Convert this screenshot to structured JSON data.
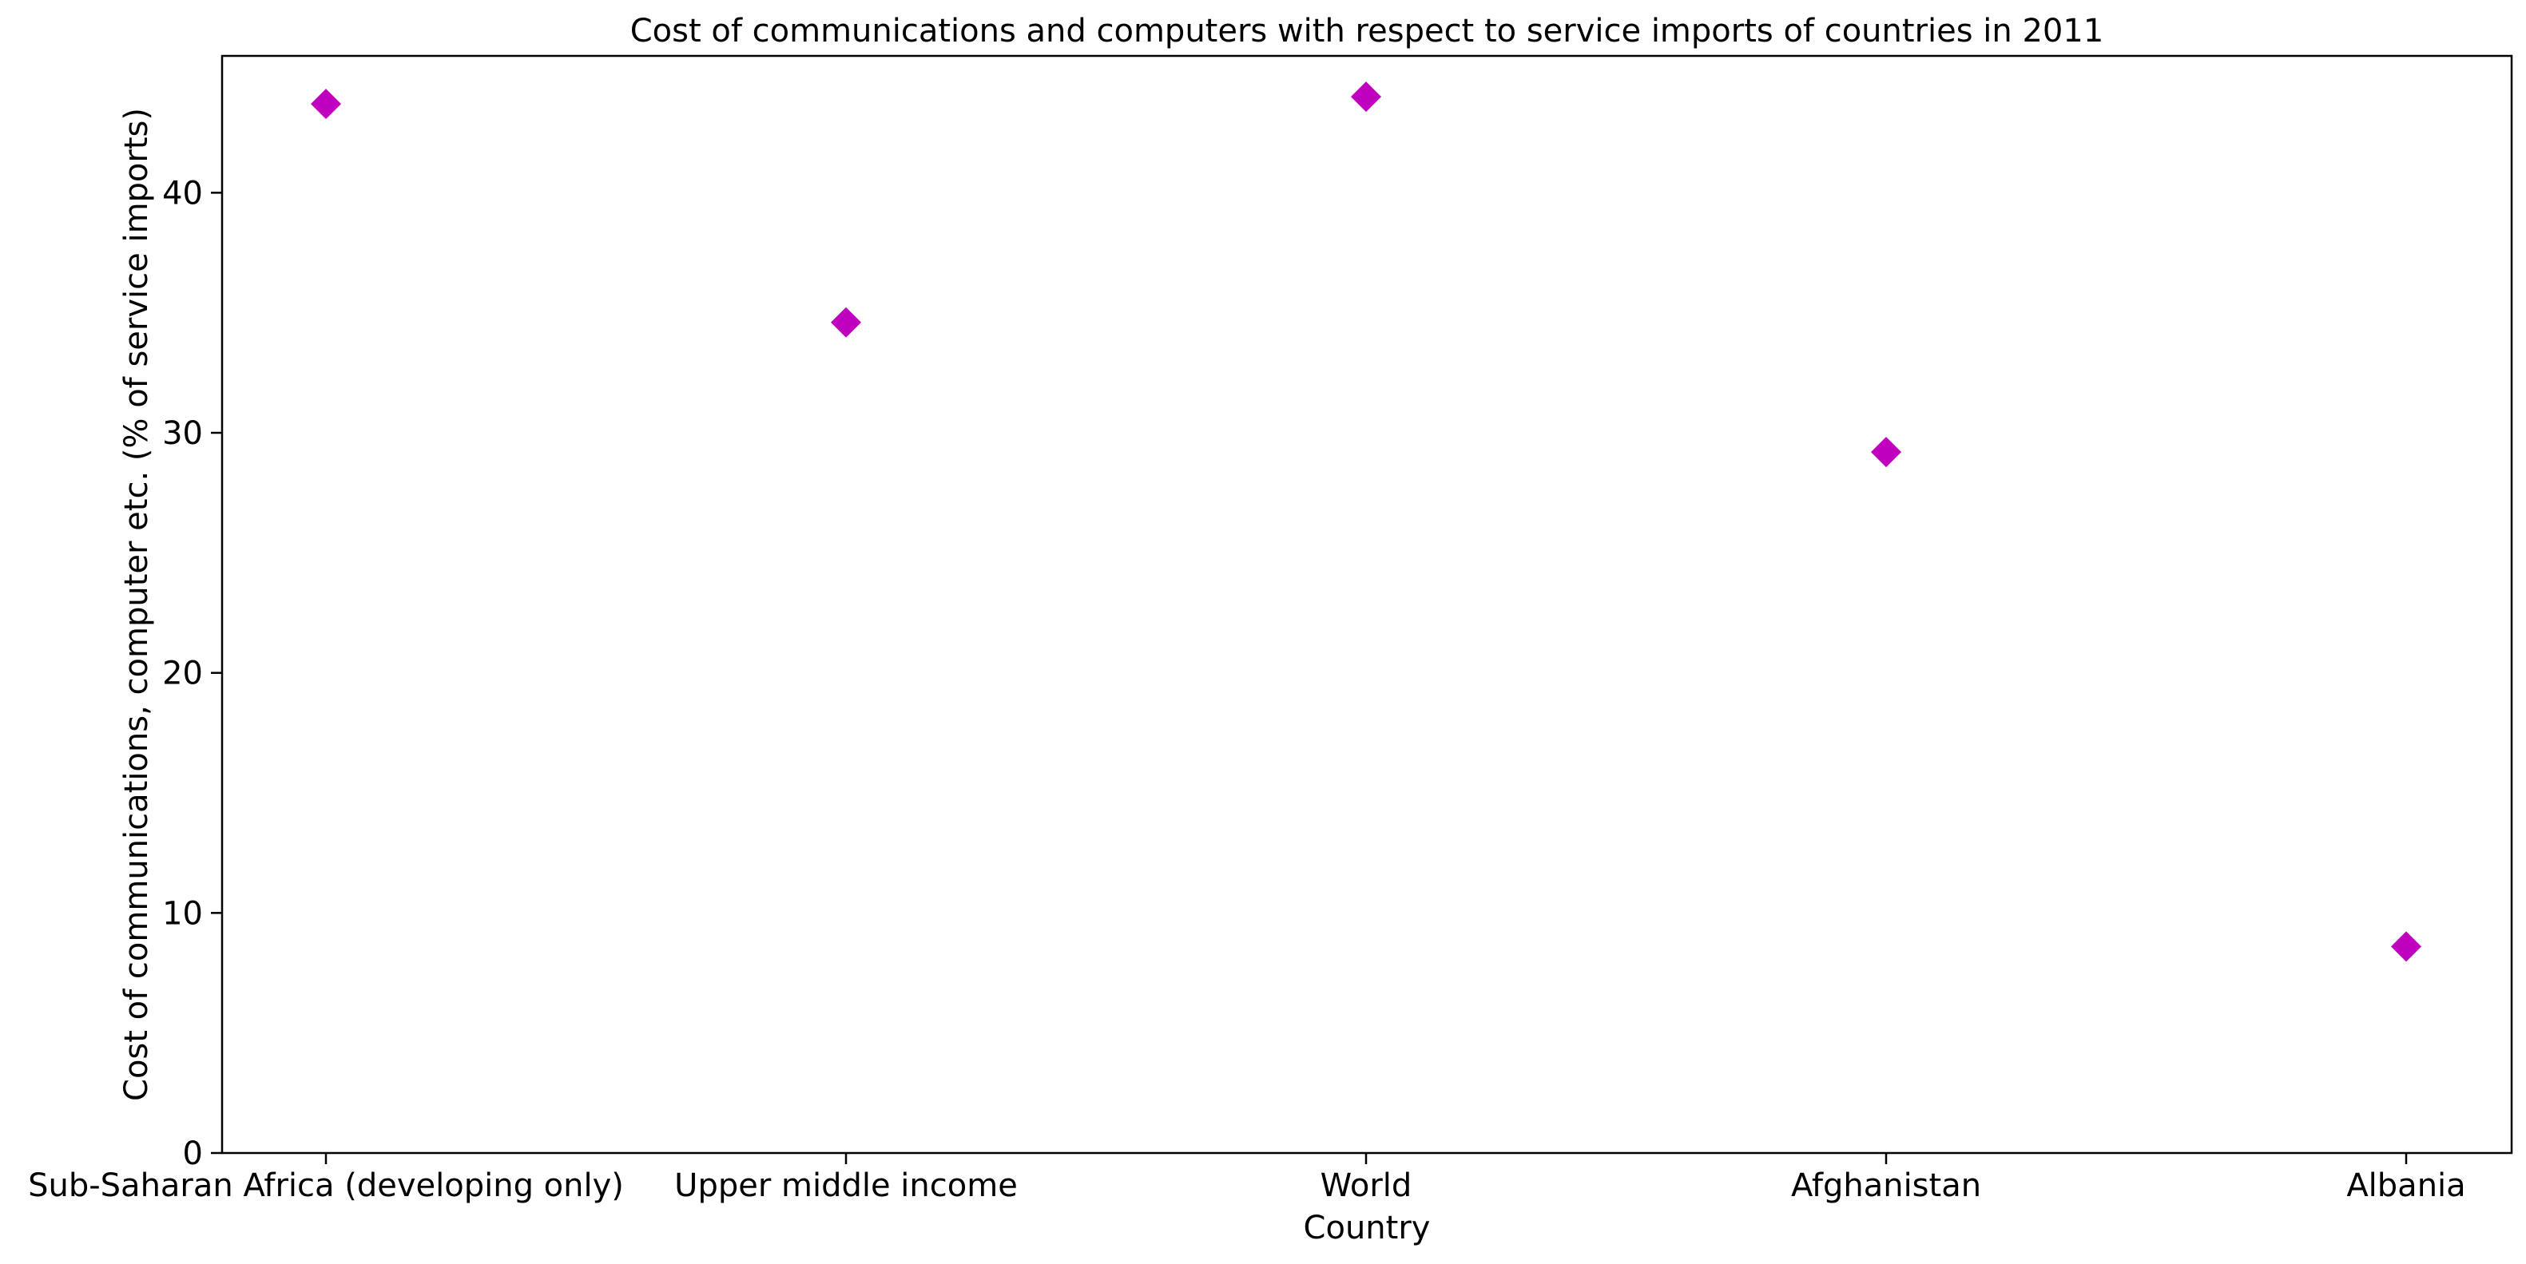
{
  "chart_data": {
    "type": "scatter",
    "title": "Cost of communications and computers with respect to service imports of countries in 2011",
    "xlabel": "Country",
    "ylabel": "Cost of communications, computer etc. (% of service imports)",
    "categories": [
      "Sub-Saharan Africa (developing only)",
      "Upper middle income",
      "World",
      "Afghanistan",
      "Albania"
    ],
    "values": [
      43.7,
      34.6,
      44.0,
      29.2,
      8.6
    ],
    "ylim": [
      0,
      45.7
    ],
    "yticks": [
      0,
      10,
      20,
      30,
      40
    ],
    "marker": "diamond",
    "marker_color": "#BF00BF",
    "grid": false,
    "legend": "none"
  }
}
